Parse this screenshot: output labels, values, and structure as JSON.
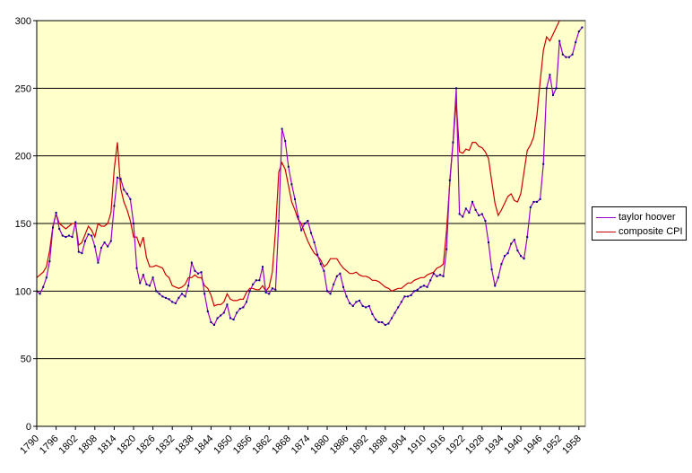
{
  "chart_data": {
    "type": "line",
    "ylim": [
      0,
      300
    ],
    "yticks": [
      0,
      50,
      100,
      150,
      200,
      250,
      300
    ],
    "xlim": [
      1790,
      1960
    ],
    "xtick_labels": [
      "1790",
      "1796",
      "1802",
      "1808",
      "1814",
      "1820",
      "1826",
      "1832",
      "1838",
      "1844",
      "1850",
      "1856",
      "1862",
      "1868",
      "1874",
      "1880",
      "1886",
      "1892",
      "1898",
      "1904",
      "1910",
      "1916",
      "1922",
      "1928",
      "1934",
      "1940",
      "1946",
      "1952",
      "1958"
    ],
    "grid": "horizontal",
    "legend_placement": "right",
    "plot_background": "#ffffcc",
    "series": [
      {
        "name": "taylor hoover",
        "color": "#9900cc",
        "markers": true,
        "x": [
          1790,
          1791,
          1792,
          1793,
          1794,
          1795,
          1796,
          1797,
          1798,
          1799,
          1800,
          1801,
          1802,
          1803,
          1804,
          1805,
          1806,
          1807,
          1808,
          1809,
          1810,
          1811,
          1812,
          1813,
          1814,
          1815,
          1816,
          1817,
          1818,
          1819,
          1820,
          1821,
          1822,
          1823,
          1824,
          1825,
          1826,
          1827,
          1828,
          1829,
          1830,
          1831,
          1832,
          1833,
          1834,
          1835,
          1836,
          1837,
          1838,
          1839,
          1840,
          1841,
          1842,
          1843,
          1844,
          1845,
          1846,
          1847,
          1848,
          1849,
          1850,
          1851,
          1852,
          1853,
          1854,
          1855,
          1856,
          1857,
          1858,
          1859,
          1860,
          1861,
          1862,
          1863,
          1864,
          1865,
          1866,
          1867,
          1868,
          1869,
          1870,
          1871,
          1872,
          1873,
          1874,
          1875,
          1876,
          1877,
          1878,
          1879,
          1880,
          1881,
          1882,
          1883,
          1884,
          1885,
          1886,
          1887,
          1888,
          1889,
          1890,
          1891,
          1892,
          1893,
          1894,
          1895,
          1896,
          1897,
          1898,
          1899,
          1900,
          1901,
          1902,
          1903,
          1904,
          1905,
          1906,
          1907,
          1908,
          1909,
          1910,
          1911,
          1912,
          1913,
          1914,
          1915,
          1916,
          1917,
          1918,
          1919,
          1920,
          1921,
          1922,
          1923,
          1924,
          1925,
          1926,
          1927,
          1928,
          1929,
          1930,
          1931,
          1932,
          1933,
          1934,
          1935,
          1936,
          1937,
          1938,
          1939,
          1940,
          1941,
          1942,
          1943,
          1944,
          1945,
          1946,
          1947,
          1948,
          1949,
          1950,
          1951,
          1952,
          1953,
          1954,
          1955,
          1956,
          1957,
          1958,
          1959
        ],
        "y": [
          100,
          98,
          103,
          110,
          122,
          147,
          158,
          146,
          141,
          140,
          141,
          140,
          151,
          129,
          128,
          137,
          142,
          141,
          133,
          121,
          132,
          136,
          133,
          137,
          163,
          184,
          183,
          175,
          172,
          168,
          150,
          117,
          106,
          112,
          105,
          104,
          110,
          100,
          98,
          96,
          95,
          94,
          92,
          91,
          95,
          98,
          96,
          104,
          121,
          115,
          113,
          114,
          98,
          85,
          77,
          75,
          80,
          82,
          84,
          90,
          80,
          79,
          84,
          87,
          88,
          92,
          100,
          105,
          108,
          108,
          118,
          99,
          98,
          102,
          101,
          152,
          220,
          211,
          192,
          179,
          168,
          155,
          145,
          150,
          152,
          143,
          136,
          127,
          120,
          115,
          100,
          98,
          105,
          111,
          113,
          103,
          96,
          91,
          89,
          92,
          93,
          89,
          88,
          89,
          83,
          79,
          77,
          77,
          75,
          76,
          80,
          84,
          88,
          92,
          96,
          96,
          97,
          100,
          101,
          103,
          104,
          103,
          108,
          113,
          111,
          112,
          111,
          131,
          182,
          210,
          250,
          157,
          155,
          161,
          158,
          166,
          160,
          156,
          157,
          152,
          136,
          116,
          104,
          110,
          120,
          126,
          128,
          135,
          138,
          130,
          126,
          124,
          140,
          162,
          166,
          166,
          168,
          194,
          250,
          260,
          245,
          250,
          285,
          275,
          273,
          273,
          275,
          284,
          292,
          295
        ]
      },
      {
        "name": "composite CPI",
        "color": "#cc0000",
        "markers": false,
        "x": [
          1790,
          1791,
          1792,
          1793,
          1794,
          1795,
          1796,
          1797,
          1798,
          1799,
          1800,
          1801,
          1802,
          1803,
          1804,
          1805,
          1806,
          1807,
          1808,
          1809,
          1810,
          1811,
          1812,
          1813,
          1814,
          1815,
          1816,
          1817,
          1818,
          1819,
          1820,
          1821,
          1822,
          1823,
          1824,
          1825,
          1826,
          1827,
          1828,
          1829,
          1830,
          1831,
          1832,
          1833,
          1834,
          1835,
          1836,
          1837,
          1838,
          1839,
          1840,
          1841,
          1842,
          1843,
          1844,
          1845,
          1846,
          1847,
          1848,
          1849,
          1850,
          1851,
          1852,
          1853,
          1854,
          1855,
          1856,
          1857,
          1858,
          1859,
          1860,
          1861,
          1862,
          1863,
          1864,
          1865,
          1866,
          1867,
          1868,
          1869,
          1870,
          1871,
          1872,
          1873,
          1874,
          1875,
          1876,
          1877,
          1878,
          1879,
          1880,
          1881,
          1882,
          1883,
          1884,
          1885,
          1886,
          1887,
          1888,
          1889,
          1890,
          1891,
          1892,
          1893,
          1894,
          1895,
          1896,
          1897,
          1898,
          1899,
          1900,
          1901,
          1902,
          1903,
          1904,
          1905,
          1906,
          1907,
          1908,
          1909,
          1910,
          1911,
          1912,
          1913,
          1914,
          1915,
          1916,
          1917,
          1918,
          1919,
          1920,
          1921,
          1922,
          1923,
          1924,
          1925,
          1926,
          1927,
          1928,
          1929,
          1930,
          1931,
          1932,
          1933,
          1934,
          1935,
          1936,
          1937,
          1938,
          1939,
          1940,
          1941,
          1942,
          1943,
          1944,
          1945,
          1946,
          1947,
          1948,
          1949,
          1950,
          1951,
          1952
        ],
        "y": [
          110,
          112,
          114,
          118,
          130,
          148,
          157,
          150,
          148,
          146,
          148,
          150,
          150,
          134,
          136,
          142,
          148,
          145,
          140,
          150,
          148,
          148,
          150,
          158,
          190,
          210,
          176,
          166,
          160,
          152,
          140,
          140,
          133,
          140,
          125,
          118,
          118,
          119,
          118,
          117,
          112,
          110,
          104,
          103,
          102,
          103,
          105,
          110,
          110,
          112,
          110,
          110,
          104,
          102,
          97,
          89,
          90,
          90,
          92,
          98,
          94,
          93,
          93,
          94,
          94,
          99,
          102,
          102,
          101,
          101,
          104,
          100,
          103,
          114,
          145,
          188,
          195,
          190,
          178,
          166,
          160,
          153,
          150,
          143,
          137,
          132,
          128,
          126,
          123,
          118,
          120,
          124,
          124,
          124,
          120,
          117,
          115,
          113,
          113,
          114,
          112,
          111,
          111,
          110,
          108,
          108,
          107,
          105,
          103,
          102,
          100,
          101,
          102,
          102,
          104,
          106,
          106,
          108,
          109,
          110,
          110,
          112,
          113,
          114,
          117,
          118,
          120,
          145,
          180,
          210,
          240,
          203,
          202,
          205,
          204,
          210,
          210,
          207,
          206,
          203,
          198,
          181,
          165,
          156,
          160,
          165,
          170,
          172,
          167,
          166,
          172,
          188,
          204,
          208,
          214,
          230,
          255,
          278,
          288,
          285,
          290,
          295,
          300
        ]
      }
    ]
  }
}
